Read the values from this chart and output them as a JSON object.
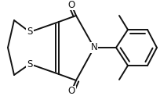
{
  "bg_color": "#ffffff",
  "bond_color": "#111111",
  "bond_width": 1.4,
  "figsize": [
    2.04,
    1.23
  ],
  "dpi": 100,
  "xlim": [
    0,
    204
  ],
  "ylim": [
    0,
    123
  ]
}
